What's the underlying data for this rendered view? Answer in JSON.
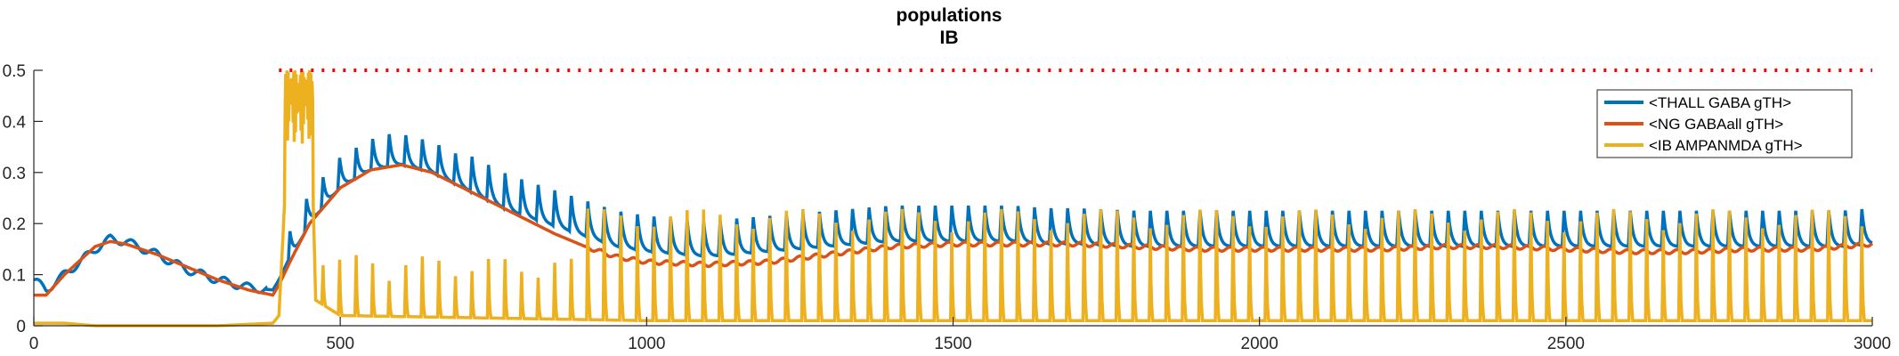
{
  "chart_data": {
    "type": "line",
    "title": "populations",
    "subtitle": "IB",
    "xlabel": "",
    "ylabel": "",
    "xlim": [
      0,
      3000
    ],
    "ylim": [
      0,
      0.5
    ],
    "xticks": [
      0,
      500,
      1000,
      1500,
      2000,
      2500,
      3000
    ],
    "xtick_labels": [
      "0",
      "500",
      "1000",
      "1500",
      "2000",
      "2500",
      "3000"
    ],
    "yticks": [
      0,
      0.1,
      0.2,
      0.3,
      0.4,
      0.5
    ],
    "ytick_labels": [
      "0",
      "0.1",
      "0.2",
      "0.3",
      "0.4",
      "0.5"
    ],
    "grid": false,
    "legend_position": "top-right",
    "reference_line": {
      "y": 0.5,
      "x_range": [
        400,
        3000
      ],
      "color": "#ff0000",
      "style": "dotted"
    },
    "series": [
      {
        "name": "<THALL GABA gTH>",
        "color": "#0072bd",
        "x": [
          0,
          20,
          50,
          100,
          125,
          150,
          200,
          250,
          300,
          350,
          390,
          400,
          420,
          450,
          500,
          550,
          580,
          600,
          650,
          700,
          750,
          800,
          850,
          900,
          950,
          1000,
          1100,
          1200,
          1300,
          1400,
          1500,
          1600,
          1700,
          1800,
          1900,
          2000,
          2100,
          2200,
          2300,
          2400,
          2500,
          2600,
          2700,
          2800,
          2900,
          2990,
          3000
        ],
        "values": [
          0.09,
          0.07,
          0.1,
          0.15,
          0.17,
          0.165,
          0.14,
          0.11,
          0.09,
          0.075,
          0.07,
          0.09,
          0.14,
          0.2,
          0.28,
          0.33,
          0.36,
          0.34,
          0.32,
          0.3,
          0.28,
          0.26,
          0.24,
          0.22,
          0.2,
          0.19,
          0.18,
          0.19,
          0.2,
          0.21,
          0.21,
          0.21,
          0.2,
          0.2,
          0.2,
          0.2,
          0.2,
          0.2,
          0.2,
          0.2,
          0.2,
          0.2,
          0.2,
          0.2,
          0.2,
          0.2,
          0.17
        ],
        "spike_period": 27,
        "spike_start": 415
      },
      {
        "name": "<NG GABAall gTH>",
        "color": "#d95319",
        "x": [
          0,
          20,
          50,
          100,
          125,
          150,
          200,
          250,
          300,
          350,
          390,
          400,
          420,
          450,
          500,
          550,
          600,
          650,
          700,
          750,
          800,
          850,
          900,
          950,
          1000,
          1100,
          1200,
          1300,
          1400,
          1500,
          1600,
          1700,
          1800,
          1900,
          2000,
          2100,
          2200,
          2300,
          2400,
          2500,
          2600,
          2700,
          2800,
          2900,
          3000
        ],
        "values": [
          0.06,
          0.06,
          0.1,
          0.155,
          0.165,
          0.16,
          0.14,
          0.115,
          0.09,
          0.07,
          0.06,
          0.08,
          0.13,
          0.2,
          0.27,
          0.305,
          0.315,
          0.3,
          0.27,
          0.24,
          0.21,
          0.18,
          0.155,
          0.135,
          0.125,
          0.12,
          0.125,
          0.14,
          0.155,
          0.16,
          0.16,
          0.16,
          0.155,
          0.15,
          0.15,
          0.15,
          0.15,
          0.155,
          0.155,
          0.15,
          0.145,
          0.145,
          0.15,
          0.15,
          0.16
        ]
      },
      {
        "name": "<IB AMPANMDA gTH>",
        "color": "#edb120",
        "x": [
          0,
          50,
          100,
          300,
          390,
          400,
          420,
          450,
          460,
          500,
          1000,
          3000
        ],
        "values": [
          0.005,
          0.005,
          0.0,
          0.0,
          0.005,
          0.02,
          0.5,
          0.5,
          0.05,
          0.02,
          0.01,
          0.01
        ],
        "spike_period": 27,
        "spike_start": 470,
        "spike_peak": 0.17,
        "spike_peak_late": 0.23
      }
    ]
  }
}
